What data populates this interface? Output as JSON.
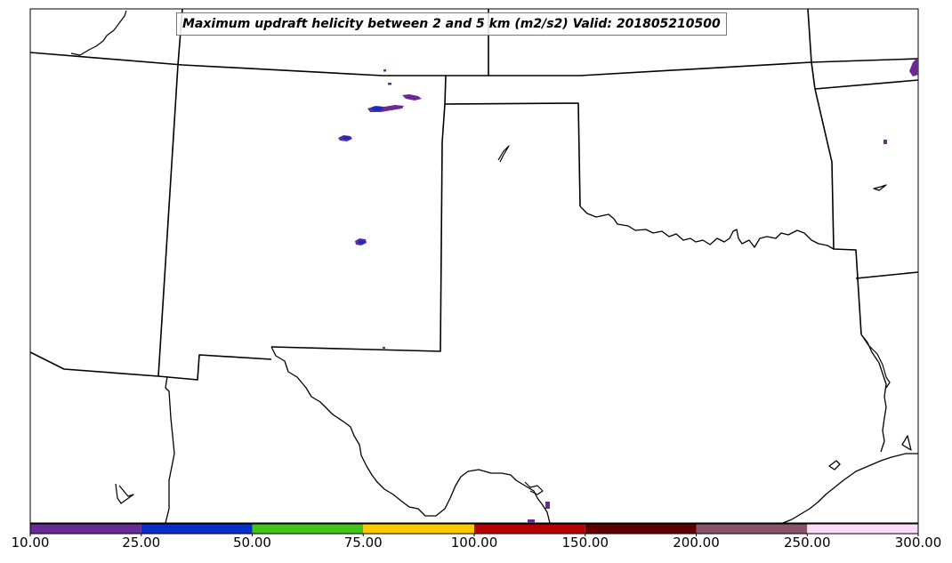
{
  "title": "Maximum updraft helicity between 2 and 5 km (m2/s2) Valid: 201805210500",
  "colorbar": {
    "ticks": [
      "10.00",
      "25.00",
      "50.00",
      "75.00",
      "100.00",
      "150.00",
      "200.00",
      "250.00",
      "300.00"
    ],
    "bins": [
      {
        "from": 10,
        "to": 25,
        "color": "#6a2a96"
      },
      {
        "from": 25,
        "to": 50,
        "color": "#0a2ec8"
      },
      {
        "from": 50,
        "to": 75,
        "color": "#44c41a"
      },
      {
        "from": 75,
        "to": 100,
        "color": "#fcc800"
      },
      {
        "from": 100,
        "to": 150,
        "color": "#b40000"
      },
      {
        "from": 150,
        "to": 200,
        "color": "#5e0000"
      },
      {
        "from": 200,
        "to": 250,
        "color": "#8a5468"
      },
      {
        "from": 250,
        "to": 300,
        "color": "#fadcf8"
      }
    ]
  },
  "colors": {
    "border": "#000000",
    "helicity_low": "#6a2a96",
    "helicity_mid": "#0a2ec8"
  }
}
